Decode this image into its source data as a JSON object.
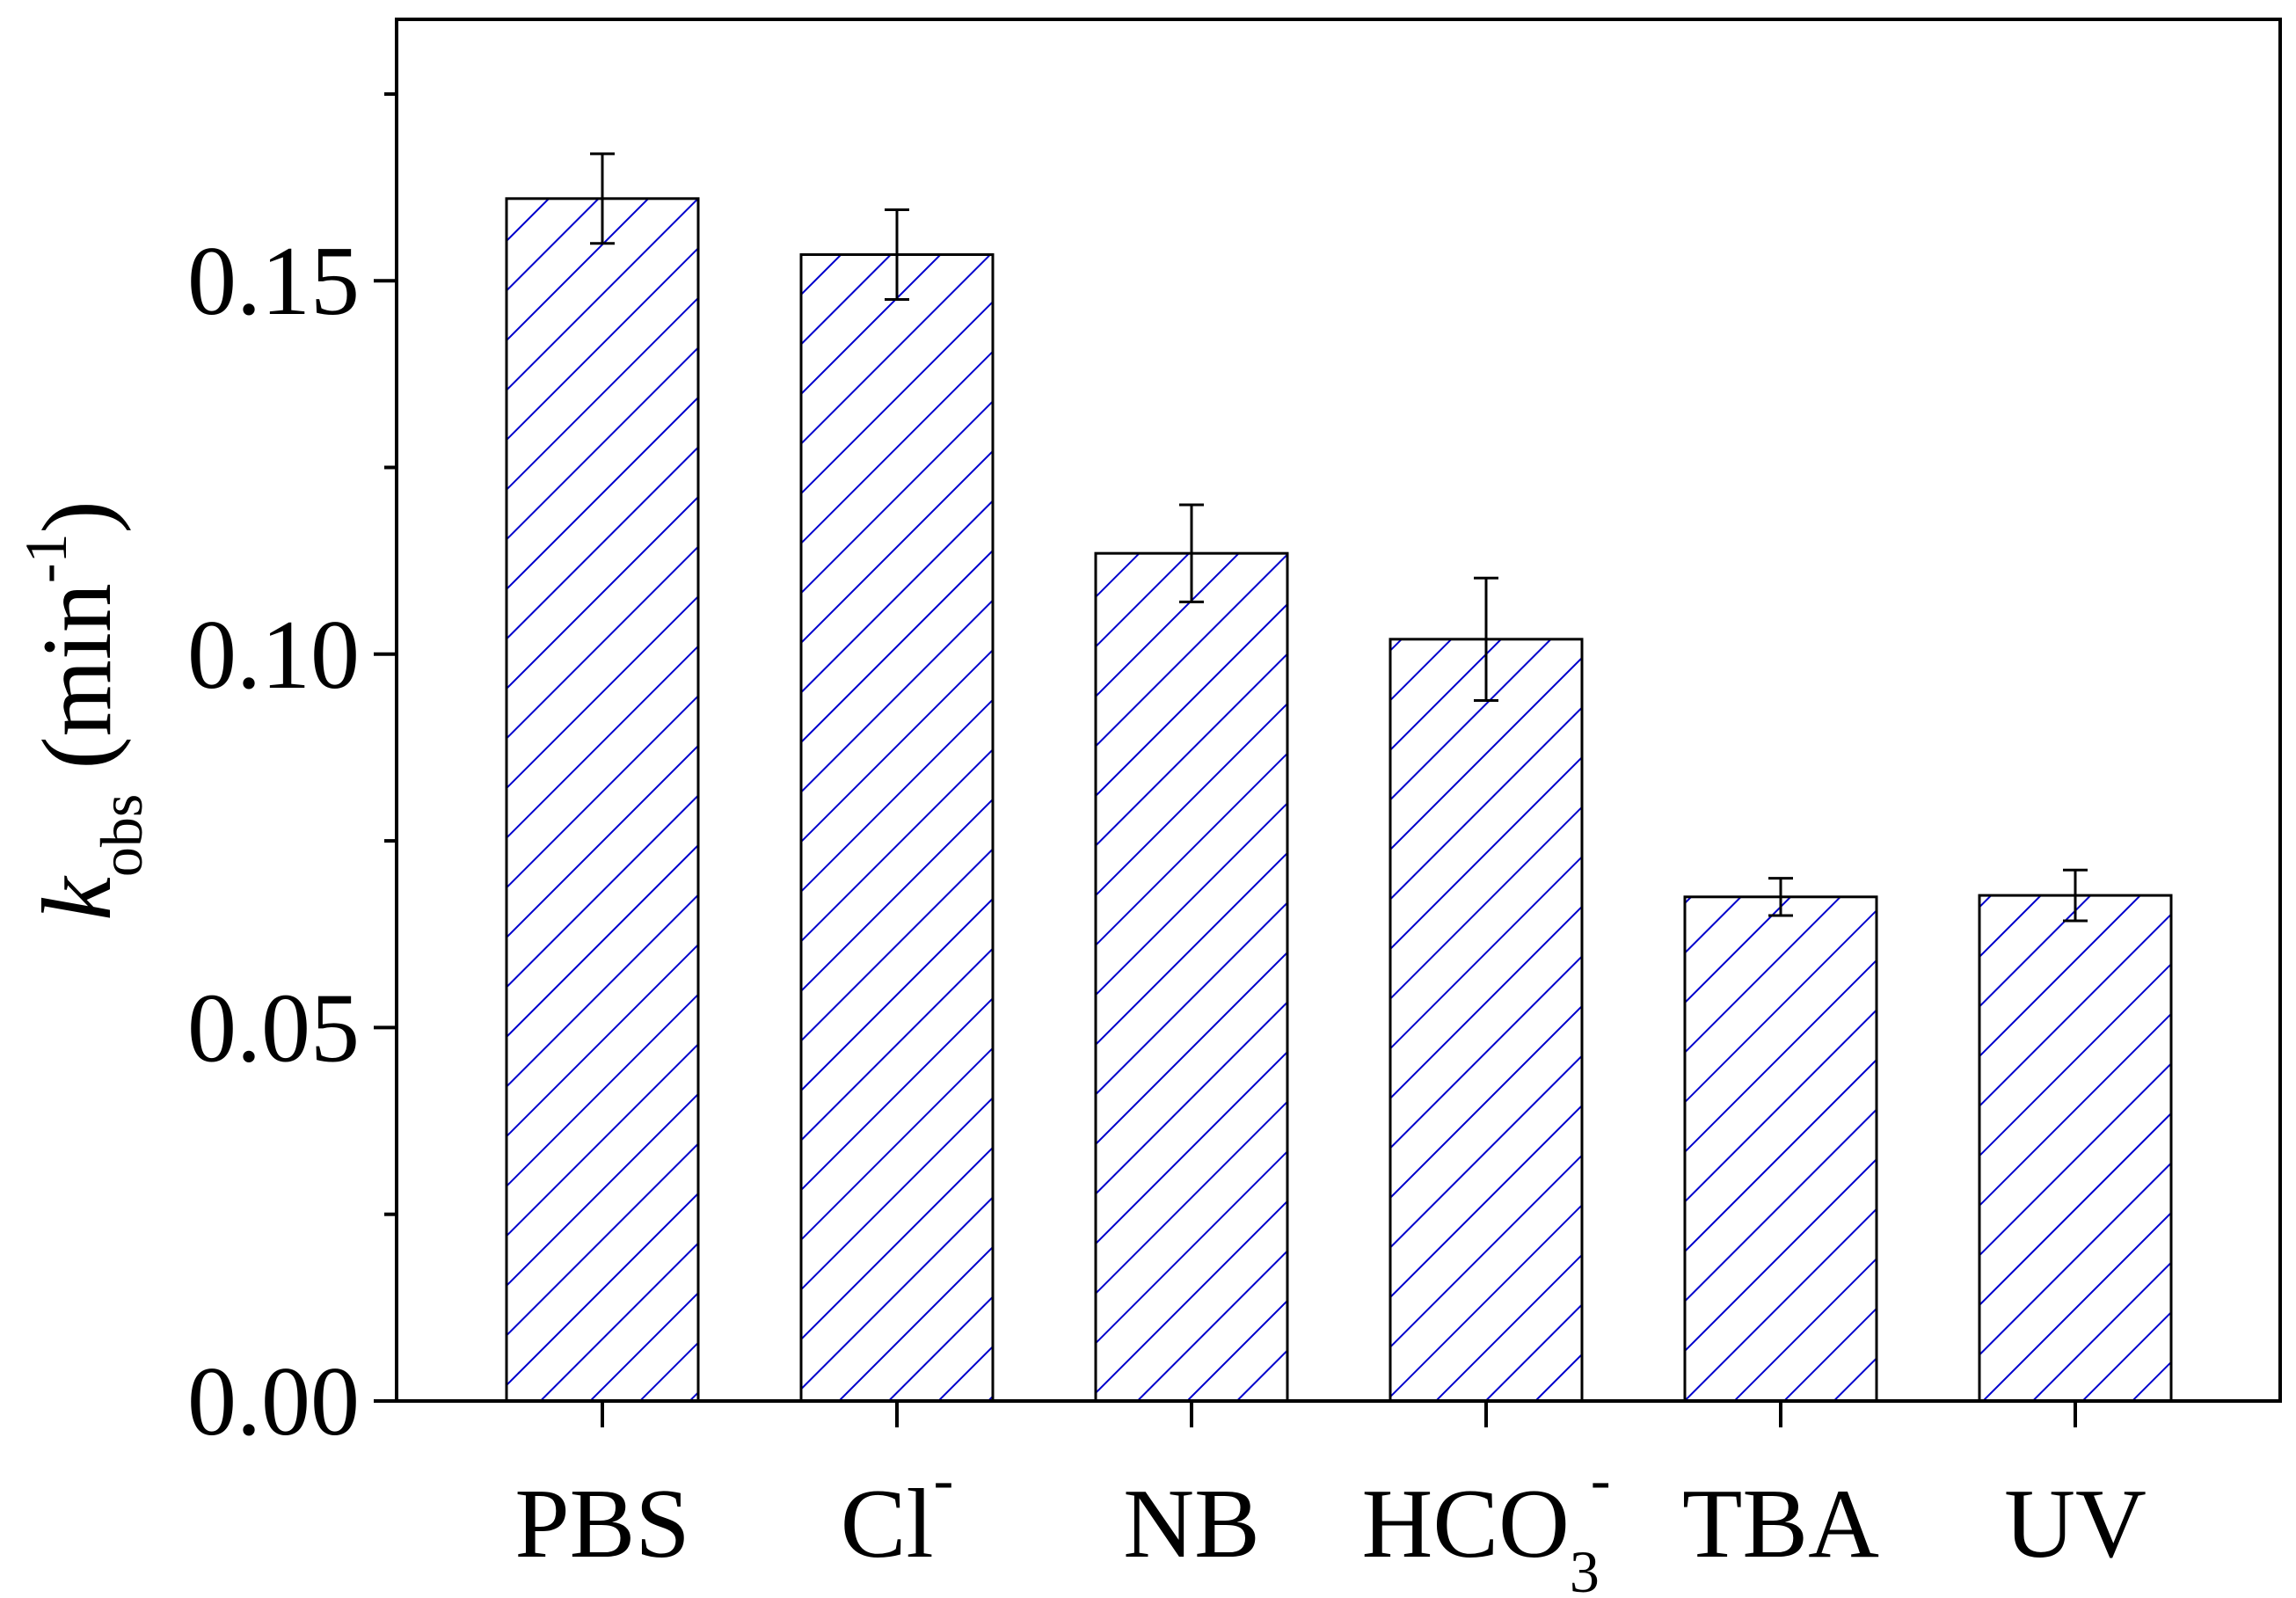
{
  "chart_data": {
    "type": "bar",
    "title": "",
    "ylabel": {
      "symbol": "k",
      "subscript": "obs",
      "unit_open": " (min",
      "unit_sup": "-1",
      "unit_close": ")"
    },
    "xlabel": "",
    "ylim": [
      0,
      0.185
    ],
    "yticks": [
      {
        "value": 0.0,
        "label": "0.00"
      },
      {
        "value": 0.05,
        "label": "0.05"
      },
      {
        "value": 0.1,
        "label": "0.10"
      },
      {
        "value": 0.15,
        "label": "0.15"
      }
    ],
    "yminor": [
      0.025,
      0.075,
      0.125,
      0.175
    ],
    "grid": false,
    "legend": "none",
    "bar_fill": "#ffffff",
    "hatch_color": "#0000cc",
    "edge_color": "#000000",
    "categories": [
      {
        "base": "PBS",
        "sub": "",
        "sup": ""
      },
      {
        "base": "Cl",
        "sub": "",
        "sup": "-"
      },
      {
        "base": "NB",
        "sub": "",
        "sup": ""
      },
      {
        "base": "HCO",
        "sub": "3",
        "sup": "-"
      },
      {
        "base": "TBA",
        "sub": "",
        "sup": ""
      },
      {
        "base": "UV",
        "sub": "",
        "sup": ""
      }
    ],
    "values": [
      0.161,
      0.1535,
      0.1135,
      0.102,
      0.0675,
      0.0677
    ],
    "errors": [
      0.006,
      0.006,
      0.0065,
      0.0082,
      0.0025,
      0.0034
    ]
  }
}
